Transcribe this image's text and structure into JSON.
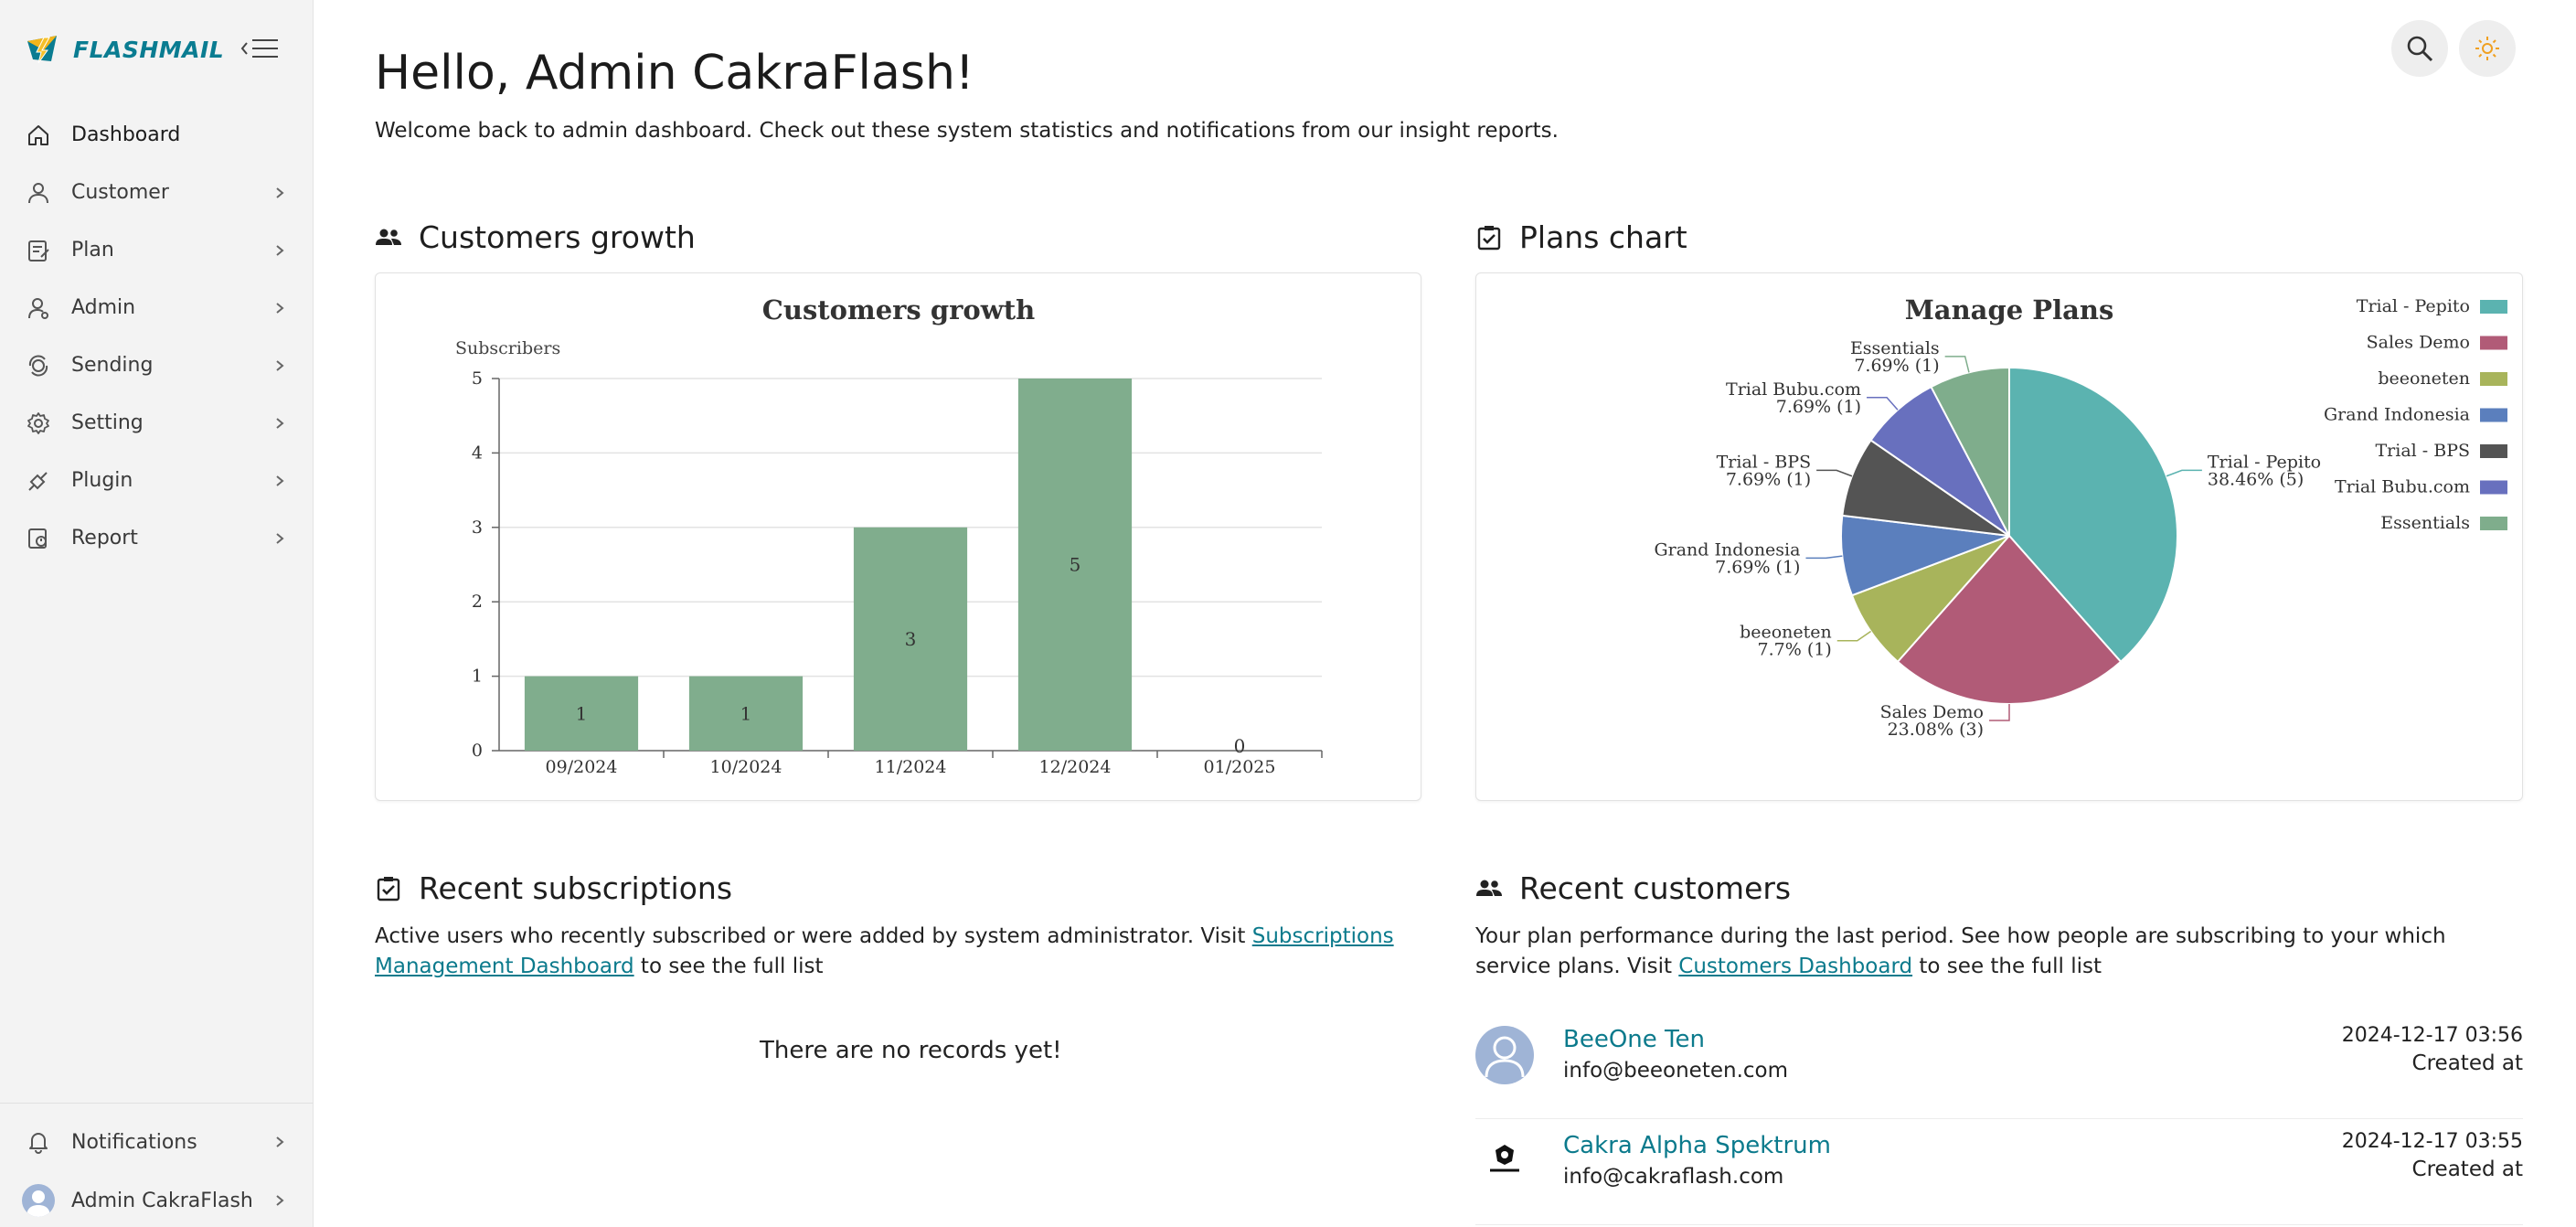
{
  "brand": {
    "name": "FLASHMAIL"
  },
  "sidebar": {
    "items": [
      {
        "label": "Dashboard",
        "icon": "home-icon",
        "active": true,
        "has_children": false
      },
      {
        "label": "Customer",
        "icon": "user-icon",
        "has_children": true
      },
      {
        "label": "Plan",
        "icon": "clipboard-icon",
        "has_children": true
      },
      {
        "label": "Admin",
        "icon": "admin-icon",
        "has_children": true
      },
      {
        "label": "Sending",
        "icon": "sending-icon",
        "has_children": true
      },
      {
        "label": "Setting",
        "icon": "gear-icon",
        "has_children": true
      },
      {
        "label": "Plugin",
        "icon": "plugin-icon",
        "has_children": true
      },
      {
        "label": "Report",
        "icon": "report-icon",
        "has_children": true
      }
    ],
    "bottom": [
      {
        "label": "Notifications",
        "icon": "bell-icon"
      },
      {
        "label": "Admin CakraFlash",
        "icon": "avatar"
      }
    ]
  },
  "header": {
    "greeting": "Hello, Admin CakraFlash!",
    "welcome": "Welcome back to admin dashboard. Check out these system statistics and notifications from our insight reports."
  },
  "sections": {
    "customers_growth": "Customers growth",
    "plans_chart": "Plans chart",
    "recent_subscriptions": "Recent subscriptions",
    "recent_customers": "Recent customers"
  },
  "subscriptions": {
    "desc_before": "Active users who recently subscribed or were added by system administrator. Visit ",
    "link": "Subscriptions Management Dashboard",
    "desc_after": " to see the full list",
    "empty": "There are no records yet!"
  },
  "customers": {
    "desc_before": "Your plan performance during the last period. See how people are subscribing to your which service plans. Visit ",
    "link": "Customers Dashboard",
    "desc_after": " to see the full list",
    "created_label": "Created at",
    "list": [
      {
        "name": "BeeOne Ten",
        "email": "info@beeoneten.com",
        "date": "2024-12-17 03:56"
      },
      {
        "name": "Cakra Alpha Spektrum",
        "email": "info@cakraflash.com",
        "date": "2024-12-17 03:55"
      }
    ]
  },
  "colors": {
    "accent": "#0b7a8c",
    "bar": "#80ad8d"
  },
  "chart_data": [
    {
      "type": "bar",
      "title": "Customers growth",
      "ylabel": "Subscribers",
      "categories": [
        "09/2024",
        "10/2024",
        "11/2024",
        "12/2024",
        "01/2025"
      ],
      "values": [
        1,
        1,
        3,
        5,
        0
      ],
      "ylim": [
        0,
        5
      ],
      "yticks": [
        0,
        1,
        2,
        3,
        4,
        5
      ],
      "grid": true
    },
    {
      "type": "pie",
      "title": "Manage Plans",
      "legend": "right",
      "slices": [
        {
          "name": "Trial - Pepito",
          "value": 5,
          "label": "38.46% (5)",
          "color": "#5bb3b0"
        },
        {
          "name": "Sales Demo",
          "value": 3,
          "label": "23.08% (3)",
          "color": "#b15b77"
        },
        {
          "name": "beeoneten",
          "value": 1,
          "label": "7.7% (1)",
          "color": "#a8b45b"
        },
        {
          "name": "Grand Indonesia",
          "value": 1,
          "label": "7.69% (1)",
          "color": "#5b7fbd"
        },
        {
          "name": "Trial - BPS",
          "value": 1,
          "label": "7.69% (1)",
          "color": "#545454"
        },
        {
          "name": "Trial Bubu.com",
          "value": 1,
          "label": "7.69% (1)",
          "color": "#6870be"
        },
        {
          "name": "Essentials",
          "value": 1,
          "label": "7.69% (1)",
          "color": "#7fad8c"
        }
      ]
    }
  ]
}
